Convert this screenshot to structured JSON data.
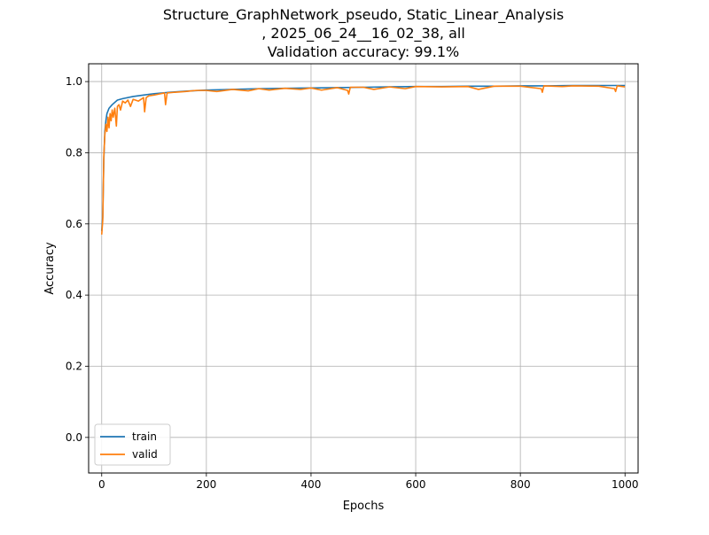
{
  "chart_data": {
    "type": "line",
    "title_lines": [
      "Structure_GraphNetwork_pseudo, Static_Linear_Analysis",
      ", 2025_06_24__16_02_38, all",
      "Validation accuracy: 99.1%"
    ],
    "xlabel": "Epochs",
    "ylabel": "Accuracy",
    "xlim": [
      -25,
      1025
    ],
    "ylim": [
      -0.1,
      1.05
    ],
    "xticks": [
      0,
      200,
      400,
      600,
      800,
      1000
    ],
    "xtick_labels": [
      "0",
      "200",
      "400",
      "600",
      "800",
      "1000"
    ],
    "yticks": [
      0.0,
      0.2,
      0.4,
      0.6,
      0.8,
      1.0
    ],
    "ytick_labels": [
      "0.0",
      "0.2",
      "0.4",
      "0.6",
      "0.8",
      "1.0"
    ],
    "grid": true,
    "legend_position": "lower-left",
    "series": [
      {
        "name": "train",
        "color": "#1f77b4",
        "x": [
          0,
          2,
          4,
          6,
          8,
          10,
          14,
          20,
          30,
          40,
          60,
          80,
          100,
          130,
          160,
          200,
          250,
          300,
          350,
          400,
          450,
          500,
          550,
          600,
          650,
          700,
          750,
          800,
          850,
          900,
          950,
          1000
        ],
        "y": [
          0.58,
          0.62,
          0.78,
          0.86,
          0.89,
          0.91,
          0.925,
          0.935,
          0.948,
          0.952,
          0.958,
          0.962,
          0.966,
          0.97,
          0.973,
          0.976,
          0.978,
          0.98,
          0.981,
          0.982,
          0.983,
          0.984,
          0.985,
          0.986,
          0.986,
          0.987,
          0.987,
          0.988,
          0.988,
          0.989,
          0.989,
          0.989
        ]
      },
      {
        "name": "valid",
        "color": "#ff7f0e",
        "x": [
          0,
          2,
          4,
          6,
          8,
          10,
          12,
          14,
          16,
          18,
          20,
          22,
          25,
          28,
          30,
          33,
          36,
          40,
          45,
          50,
          55,
          60,
          70,
          80,
          82,
          85,
          90,
          100,
          110,
          120,
          122,
          125,
          140,
          160,
          180,
          200,
          220,
          250,
          280,
          300,
          320,
          350,
          380,
          400,
          420,
          450,
          470,
          472,
          475,
          500,
          520,
          550,
          580,
          600,
          650,
          700,
          720,
          750,
          800,
          840,
          842,
          845,
          880,
          900,
          950,
          980,
          982,
          985,
          1000
        ],
        "y": [
          0.57,
          0.61,
          0.79,
          0.85,
          0.88,
          0.86,
          0.9,
          0.87,
          0.91,
          0.89,
          0.92,
          0.9,
          0.925,
          0.875,
          0.93,
          0.935,
          0.92,
          0.945,
          0.94,
          0.948,
          0.93,
          0.95,
          0.945,
          0.955,
          0.915,
          0.955,
          0.96,
          0.962,
          0.965,
          0.968,
          0.935,
          0.968,
          0.97,
          0.972,
          0.975,
          0.975,
          0.972,
          0.978,
          0.974,
          0.98,
          0.976,
          0.981,
          0.978,
          0.982,
          0.976,
          0.983,
          0.975,
          0.965,
          0.984,
          0.984,
          0.978,
          0.985,
          0.98,
          0.986,
          0.985,
          0.986,
          0.978,
          0.987,
          0.987,
          0.98,
          0.97,
          0.988,
          0.986,
          0.988,
          0.987,
          0.98,
          0.972,
          0.988,
          0.985
        ]
      }
    ]
  }
}
